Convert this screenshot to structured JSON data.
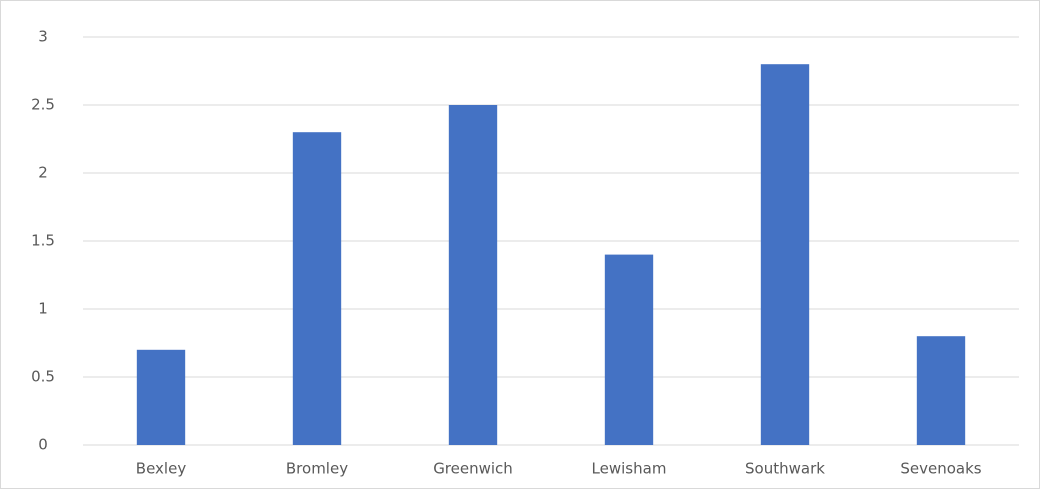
{
  "chart_data": {
    "type": "bar",
    "categories": [
      "Bexley",
      "Bromley",
      "Greenwich",
      "Lewisham",
      "Southwark",
      "Sevenoaks"
    ],
    "values": [
      0.7,
      2.3,
      2.5,
      1.4,
      2.8,
      0.8
    ],
    "color": "#4472c4",
    "ylim": [
      0,
      3
    ],
    "yticks": [
      0,
      0.5,
      1,
      1.5,
      2,
      2.5,
      3
    ],
    "grid": true
  }
}
